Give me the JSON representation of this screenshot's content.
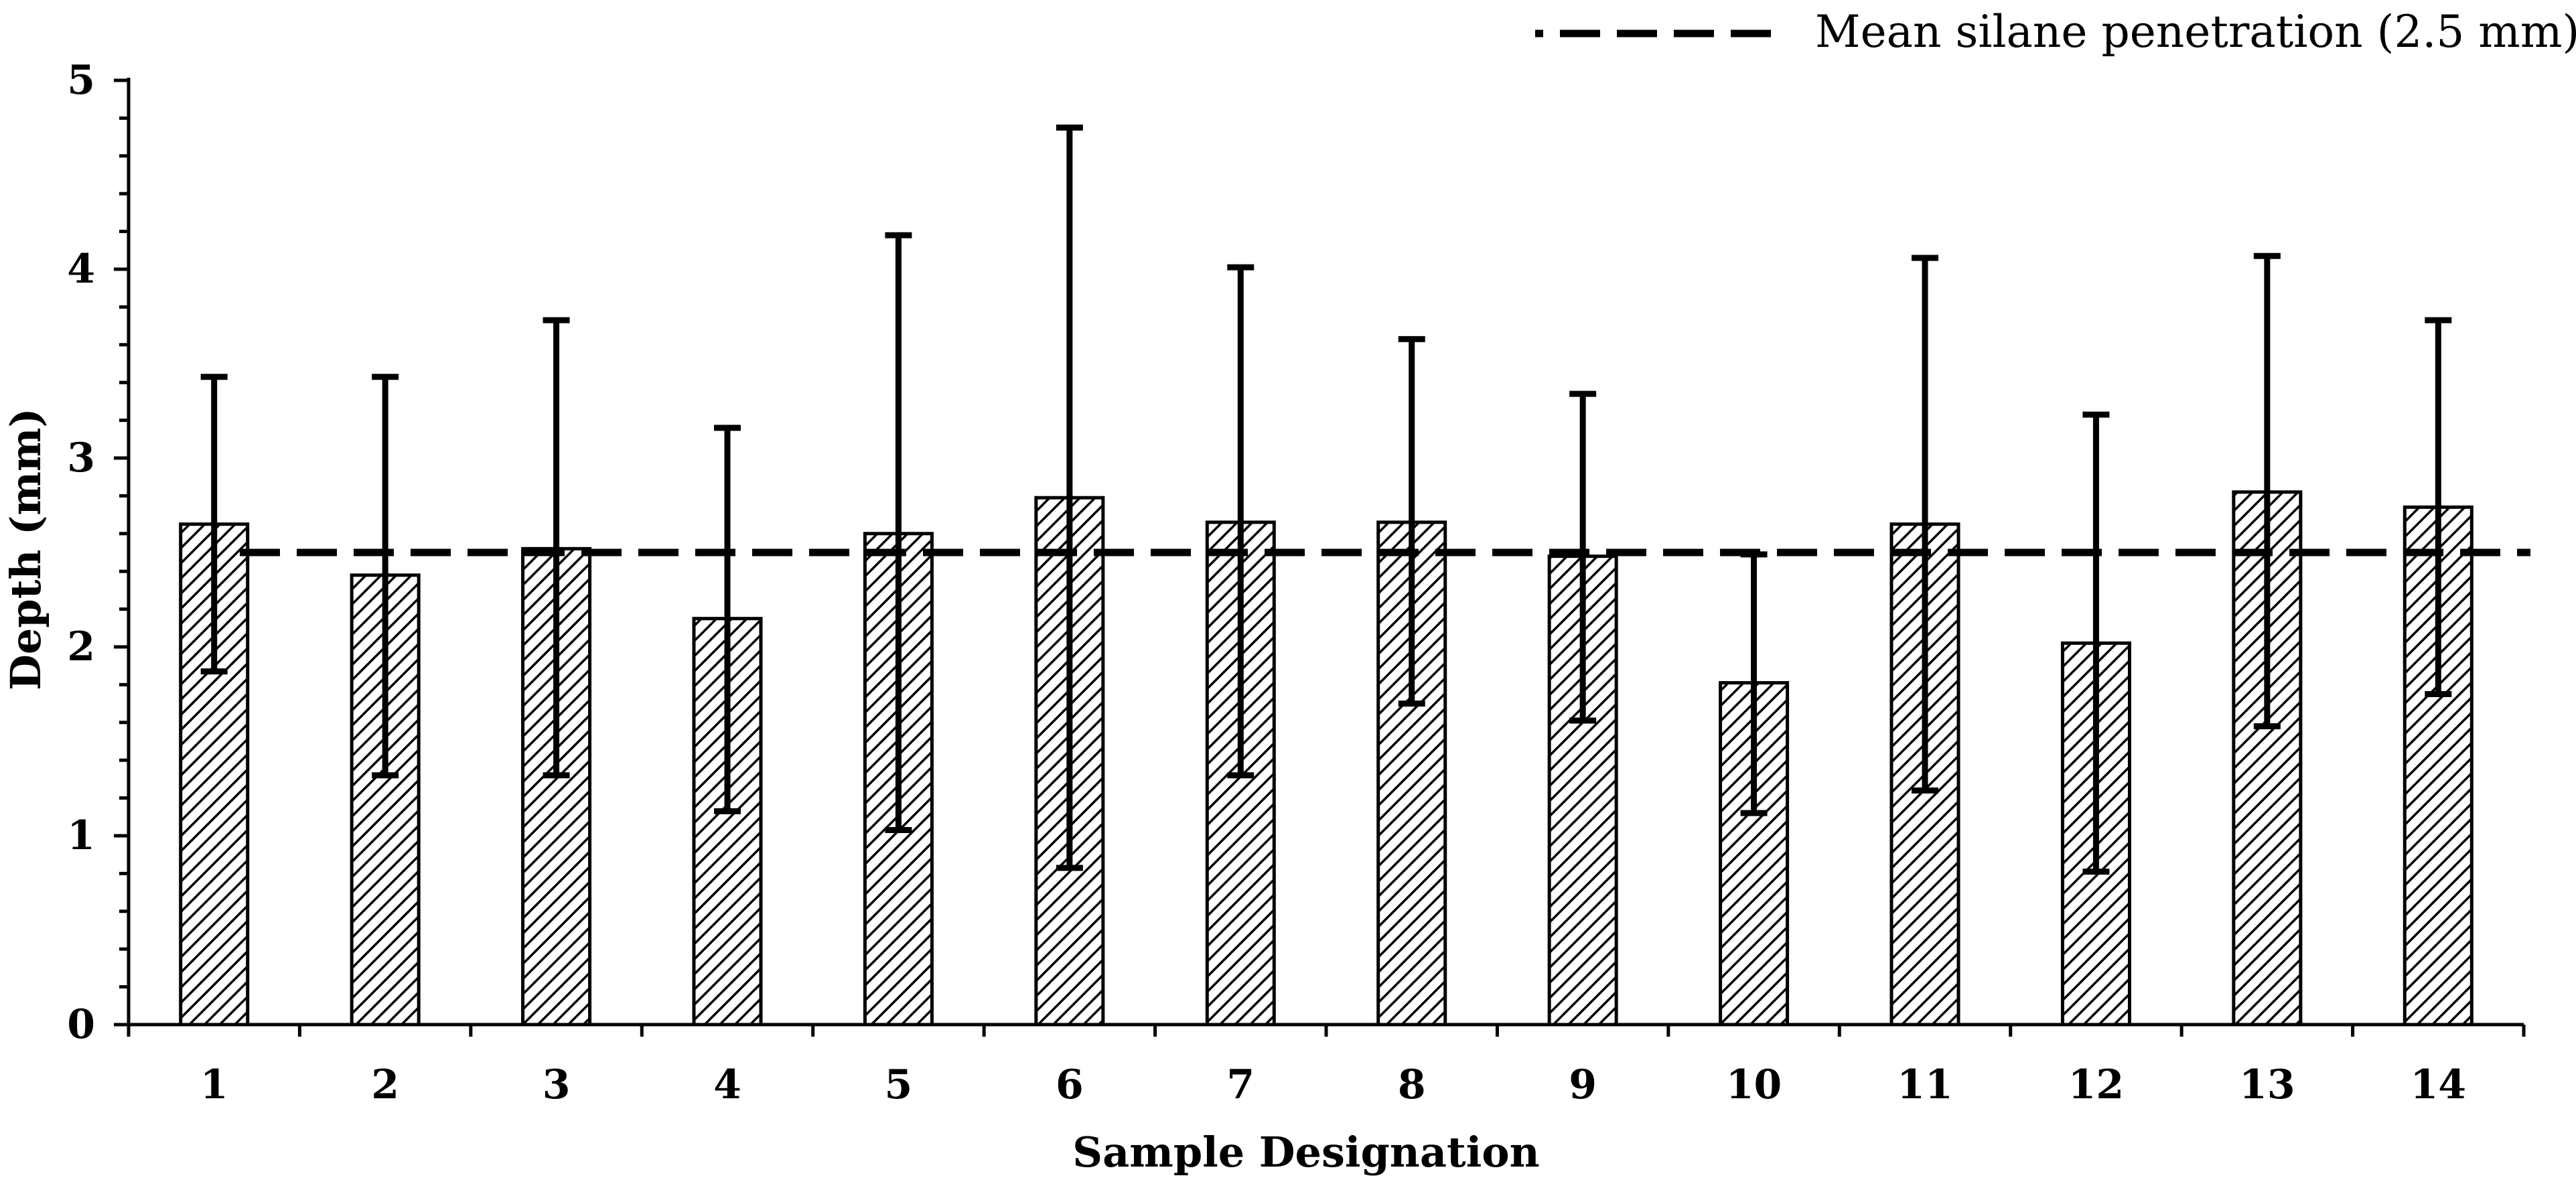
{
  "chart_data": {
    "type": "bar",
    "title": "",
    "xlabel": "Sample Designation",
    "ylabel": "Depth (mm)",
    "ylim": [
      0,
      5
    ],
    "y_ticks": [
      "0",
      "1",
      "2",
      "3",
      "4",
      "5"
    ],
    "categories": [
      "1",
      "2",
      "3",
      "4",
      "5",
      "6",
      "7",
      "8",
      "9",
      "10",
      "11",
      "12",
      "13",
      "14"
    ],
    "series": [
      {
        "name": "Depth",
        "values": [
          2.65,
          2.38,
          2.52,
          2.15,
          2.6,
          2.79,
          2.66,
          2.66,
          2.48,
          1.81,
          2.65,
          2.02,
          2.82,
          2.74
        ],
        "error_high": [
          3.43,
          3.43,
          3.73,
          3.16,
          4.18,
          4.75,
          4.01,
          3.63,
          3.34,
          2.49,
          4.06,
          3.23,
          4.07,
          3.73
        ],
        "error_low": [
          1.87,
          1.32,
          1.32,
          1.13,
          1.03,
          0.83,
          1.32,
          1.7,
          1.61,
          1.12,
          1.24,
          0.81,
          1.58,
          1.75
        ]
      }
    ],
    "reference_line": {
      "label": "Mean silane penetration (2.5 mm)",
      "value": 2.5
    },
    "legend_position": "top-right",
    "grid": false
  }
}
